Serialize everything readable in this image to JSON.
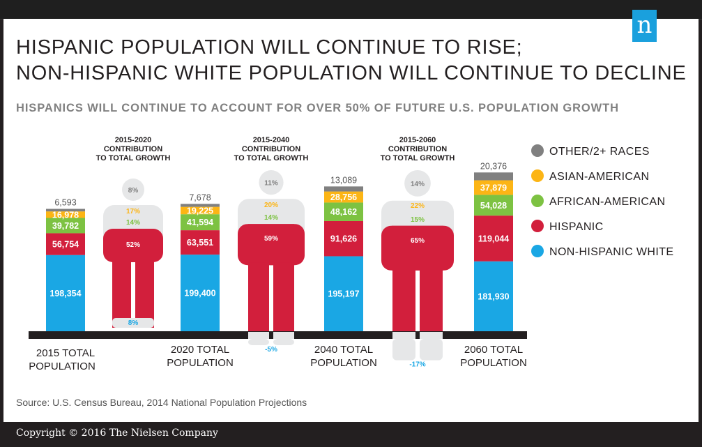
{
  "title_line1": "HISPANIC POPULATION WILL CONTINUE TO RISE;",
  "title_line2": "NON-HISPANIC WHITE POPULATION WILL CONTINUE TO DECLINE",
  "subtitle": "HISPANICS WILL CONTINUE TO ACCOUNT FOR OVER 50% OF FUTURE U.S. POPULATION GROWTH",
  "logo_letter": "n",
  "source": "Source: U.S. Census Bureau, 2014 National Population Projections",
  "copyright": "Copyright © 2016 The Nielsen Company",
  "colors": {
    "other": "#808080",
    "asian": "#fcb515",
    "african": "#7dc242",
    "hispanic": "#d21f3c",
    "white": "#1aa7e4",
    "figure": "#e6e7e8",
    "axis": "#231f20"
  },
  "chart_data": {
    "type": "bar",
    "stacked": true,
    "categories": [
      "2015 TOTAL POPULATION",
      "2020 TOTAL POPULATION",
      "2040 TOTAL POPULATION",
      "2060 TOTAL POPULATION"
    ],
    "series": [
      {
        "name": "NON-HISPANIC WHITE",
        "key": "white",
        "values": [
          198354,
          199400,
          195197,
          181930
        ],
        "labels": [
          "198,354",
          "199,400",
          "195,197",
          "181,930"
        ]
      },
      {
        "name": "HISPANIC",
        "key": "hispanic",
        "values": [
          56754,
          63551,
          91626,
          119044
        ],
        "labels": [
          "56,754",
          "63,551",
          "91,626",
          "119,044"
        ]
      },
      {
        "name": "AFRICAN-AMERICAN",
        "key": "african",
        "values": [
          39782,
          41594,
          48162,
          54028
        ],
        "labels": [
          "39,782",
          "41,594",
          "48,162",
          "54,028"
        ]
      },
      {
        "name": "ASIAN-AMERICAN",
        "key": "asian",
        "values": [
          16978,
          19225,
          28756,
          37879
        ],
        "labels": [
          "16,978",
          "19,225",
          "28,756",
          "37,879"
        ]
      },
      {
        "name": "OTHER/2+ RACES",
        "key": "other",
        "values": [
          6593,
          7678,
          13089,
          20376
        ],
        "labels": [
          "6,593",
          "7,678",
          "13,089",
          "20,376"
        ]
      }
    ],
    "legend_order": [
      "OTHER/2+ RACES",
      "ASIAN-AMERICAN",
      "AFRICAN-AMERICAN",
      "HISPANIC",
      "NON-HISPANIC WHITE"
    ],
    "legend_keys": [
      "other",
      "asian",
      "african",
      "hispanic",
      "white"
    ],
    "legend_position": "right",
    "contributions": [
      {
        "period_title": [
          "2015-2020",
          "CONTRIBUTION",
          "TO TOTAL GROWTH"
        ],
        "other": "8%",
        "asian": "17%",
        "african": "14%",
        "hispanic": "52%",
        "white": "8%",
        "white_value": 8
      },
      {
        "period_title": [
          "2015-2040",
          "CONTRIBUTION",
          "TO TOTAL GROWTH"
        ],
        "other": "11%",
        "asian": "20%",
        "african": "14%",
        "hispanic": "59%",
        "white": "-5%",
        "white_value": -5
      },
      {
        "period_title": [
          "2015-2060",
          "CONTRIBUTION",
          "TO TOTAL GROWTH"
        ],
        "other": "14%",
        "asian": "22%",
        "african": "15%",
        "hispanic": "65%",
        "white": "-17%",
        "white_value": -17
      }
    ]
  }
}
